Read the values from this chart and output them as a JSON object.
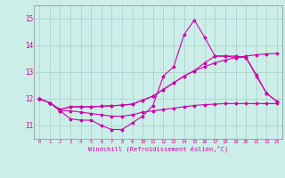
{
  "xlabel": "Windchill (Refroidissement éolien,°C)",
  "background_color": "#cceee8",
  "grid_color": "#aacccc",
  "line_color": "#cc00aa",
  "xlim": [
    -0.5,
    23.5
  ],
  "ylim": [
    10.5,
    15.5
  ],
  "yticks": [
    11,
    12,
    13,
    14,
    15
  ],
  "xticks": [
    0,
    1,
    2,
    3,
    4,
    5,
    6,
    7,
    8,
    9,
    10,
    11,
    12,
    13,
    14,
    15,
    16,
    17,
    18,
    19,
    20,
    21,
    22,
    23
  ],
  "series": [
    {
      "x": [
        0,
        1,
        2,
        3,
        4,
        5,
        6,
        7,
        8,
        9,
        10,
        11,
        12,
        13,
        14,
        15,
        16,
        17,
        18,
        19,
        20,
        21,
        22,
        23
      ],
      "y": [
        12.0,
        11.85,
        11.55,
        11.25,
        11.2,
        11.2,
        11.0,
        10.85,
        10.85,
        11.1,
        11.35,
        11.75,
        12.85,
        13.2,
        14.4,
        14.95,
        14.3,
        13.6,
        13.6,
        13.55,
        13.55,
        12.9,
        12.2,
        11.9
      ]
    },
    {
      "x": [
        0,
        1,
        2,
        3,
        4,
        5,
        6,
        7,
        8,
        9,
        10,
        11,
        12,
        13,
        14,
        15,
        16,
        17,
        18,
        19,
        20,
        21,
        22,
        23
      ],
      "y": [
        12.0,
        11.85,
        11.55,
        11.55,
        11.5,
        11.45,
        11.4,
        11.35,
        11.35,
        11.4,
        11.5,
        11.55,
        11.6,
        11.65,
        11.7,
        11.75,
        11.78,
        11.8,
        11.82,
        11.82,
        11.82,
        11.82,
        11.82,
        11.82
      ]
    },
    {
      "x": [
        0,
        1,
        2,
        3,
        4,
        5,
        6,
        7,
        8,
        9,
        10,
        11,
        12,
        13,
        14,
        15,
        16,
        17,
        18,
        19,
        20,
        21,
        22,
        23
      ],
      "y": [
        12.0,
        11.85,
        11.6,
        11.7,
        11.7,
        11.7,
        11.72,
        11.74,
        11.76,
        11.8,
        11.95,
        12.1,
        12.35,
        12.6,
        12.85,
        13.05,
        13.2,
        13.35,
        13.45,
        13.55,
        13.6,
        13.65,
        13.68,
        13.7
      ]
    },
    {
      "x": [
        0,
        1,
        2,
        3,
        4,
        5,
        6,
        7,
        8,
        9,
        10,
        11,
        12,
        13,
        14,
        15,
        16,
        17,
        18,
        19,
        20,
        21,
        22,
        23
      ],
      "y": [
        12.0,
        11.85,
        11.6,
        11.7,
        11.7,
        11.7,
        11.72,
        11.74,
        11.76,
        11.8,
        11.95,
        12.1,
        12.35,
        12.6,
        12.85,
        13.05,
        13.35,
        13.6,
        13.6,
        13.6,
        13.55,
        12.85,
        12.2,
        11.9
      ]
    }
  ]
}
